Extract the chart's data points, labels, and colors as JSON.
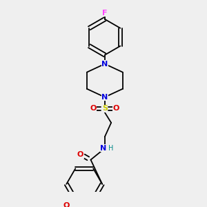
{
  "background_color": "#efefef",
  "bond_color": "#000000",
  "atom_colors": {
    "F": "#ff44ff",
    "N": "#0000dd",
    "O": "#dd0000",
    "S": "#cccc00",
    "NH": "#008888",
    "C": "#000000"
  },
  "figsize": [
    3.0,
    3.0
  ],
  "dpi": 100,
  "lw": 1.3,
  "fontsize": 7.5
}
